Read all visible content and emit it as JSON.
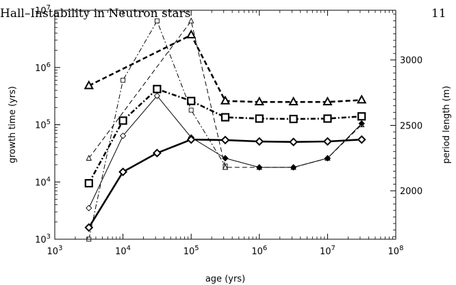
{
  "header": {
    "running_head": "Hall–Instability in Neutron stars",
    "page_number": "11"
  },
  "chart_data": {
    "type": "line",
    "xlabel": "age (yrs)",
    "ylabel_left": "growth time (yrs)",
    "ylabel_right": "period length (m)",
    "xscale": "log",
    "yscale_left": "log",
    "xlim": [
      1000,
      100000000
    ],
    "ylim_left": [
      1000,
      10000000
    ],
    "ylim_right": [
      1630,
      3380
    ],
    "x_ticks": [
      {
        "value": 1000,
        "base": "10",
        "exp": "3"
      },
      {
        "value": 10000,
        "base": "10",
        "exp": "4"
      },
      {
        "value": 100000,
        "base": "10",
        "exp": "5"
      },
      {
        "value": 1000000,
        "base": "10",
        "exp": "6"
      },
      {
        "value": 10000000,
        "base": "10",
        "exp": "7"
      },
      {
        "value": 100000000,
        "base": "10",
        "exp": "8"
      }
    ],
    "y_ticks_left": [
      {
        "value": 1000,
        "base": "10",
        "exp": "3"
      },
      {
        "value": 10000,
        "base": "10",
        "exp": "4"
      },
      {
        "value": 100000,
        "base": "10",
        "exp": "5"
      },
      {
        "value": 1000000,
        "base": "10",
        "exp": "6"
      },
      {
        "value": 10000000,
        "base": "10",
        "exp": "7"
      }
    ],
    "y_ticks_right": [
      {
        "value": 2000,
        "label": "2000"
      },
      {
        "value": 2500,
        "label": "2500"
      },
      {
        "value": 3000,
        "label": "3000"
      }
    ],
    "grid": false,
    "series": [
      {
        "axis": "left",
        "marker": "square-large",
        "line": "dash-dot",
        "weight": "thick",
        "x": [
          3162,
          10000,
          31623,
          100000,
          316228,
          1000000,
          3162278,
          10000000,
          31622777
        ],
        "y": [
          9500,
          118000,
          420000,
          260000,
          135000,
          128000,
          126000,
          128000,
          140000
        ]
      },
      {
        "axis": "left",
        "marker": "square-small",
        "line": "dash-dot",
        "weight": "thin",
        "x": [
          3162,
          10000,
          31623,
          100000,
          316228
        ],
        "y": [
          1000,
          600000,
          6500000,
          180000,
          19000
        ]
      },
      {
        "axis": "left",
        "marker": "triangle-large",
        "line": "dash",
        "weight": "thick",
        "x": [
          3162,
          100000,
          316228,
          1000000,
          3162278,
          10000000,
          31622777
        ],
        "y": [
          480000,
          3700000,
          260000,
          250000,
          250000,
          250000,
          270000
        ]
      },
      {
        "axis": "left",
        "marker": "triangle-small",
        "line": "dash",
        "weight": "thin",
        "x": [
          3162,
          100000,
          316228,
          1000000,
          3162278,
          10000000,
          31622777
        ],
        "y": [
          26000,
          6500000,
          18000,
          18000,
          18000,
          26000,
          100000
        ]
      },
      {
        "axis": "left",
        "marker": "diamond-filled",
        "line": "solid",
        "weight": "thin",
        "x": [
          100000,
          316228,
          1000000,
          3162278,
          10000000,
          31622777
        ],
        "y": [
          60000,
          26000,
          18000,
          18000,
          26000,
          105000
        ]
      },
      {
        "axis": "left",
        "marker": "diamond-open",
        "line": "solid",
        "weight": "thin",
        "x": [
          3162,
          10000,
          31623,
          100000
        ],
        "y": [
          3500,
          64000,
          320000,
          60000
        ]
      },
      {
        "axis": "left",
        "marker": "diamond-open-large",
        "line": "solid",
        "weight": "thick",
        "x": [
          3162,
          10000,
          31623,
          100000,
          316228,
          1000000,
          3162278,
          10000000,
          31622777
        ],
        "y": [
          1600,
          15000,
          32000,
          55000,
          54000,
          51000,
          50000,
          51000,
          55000
        ]
      }
    ]
  }
}
